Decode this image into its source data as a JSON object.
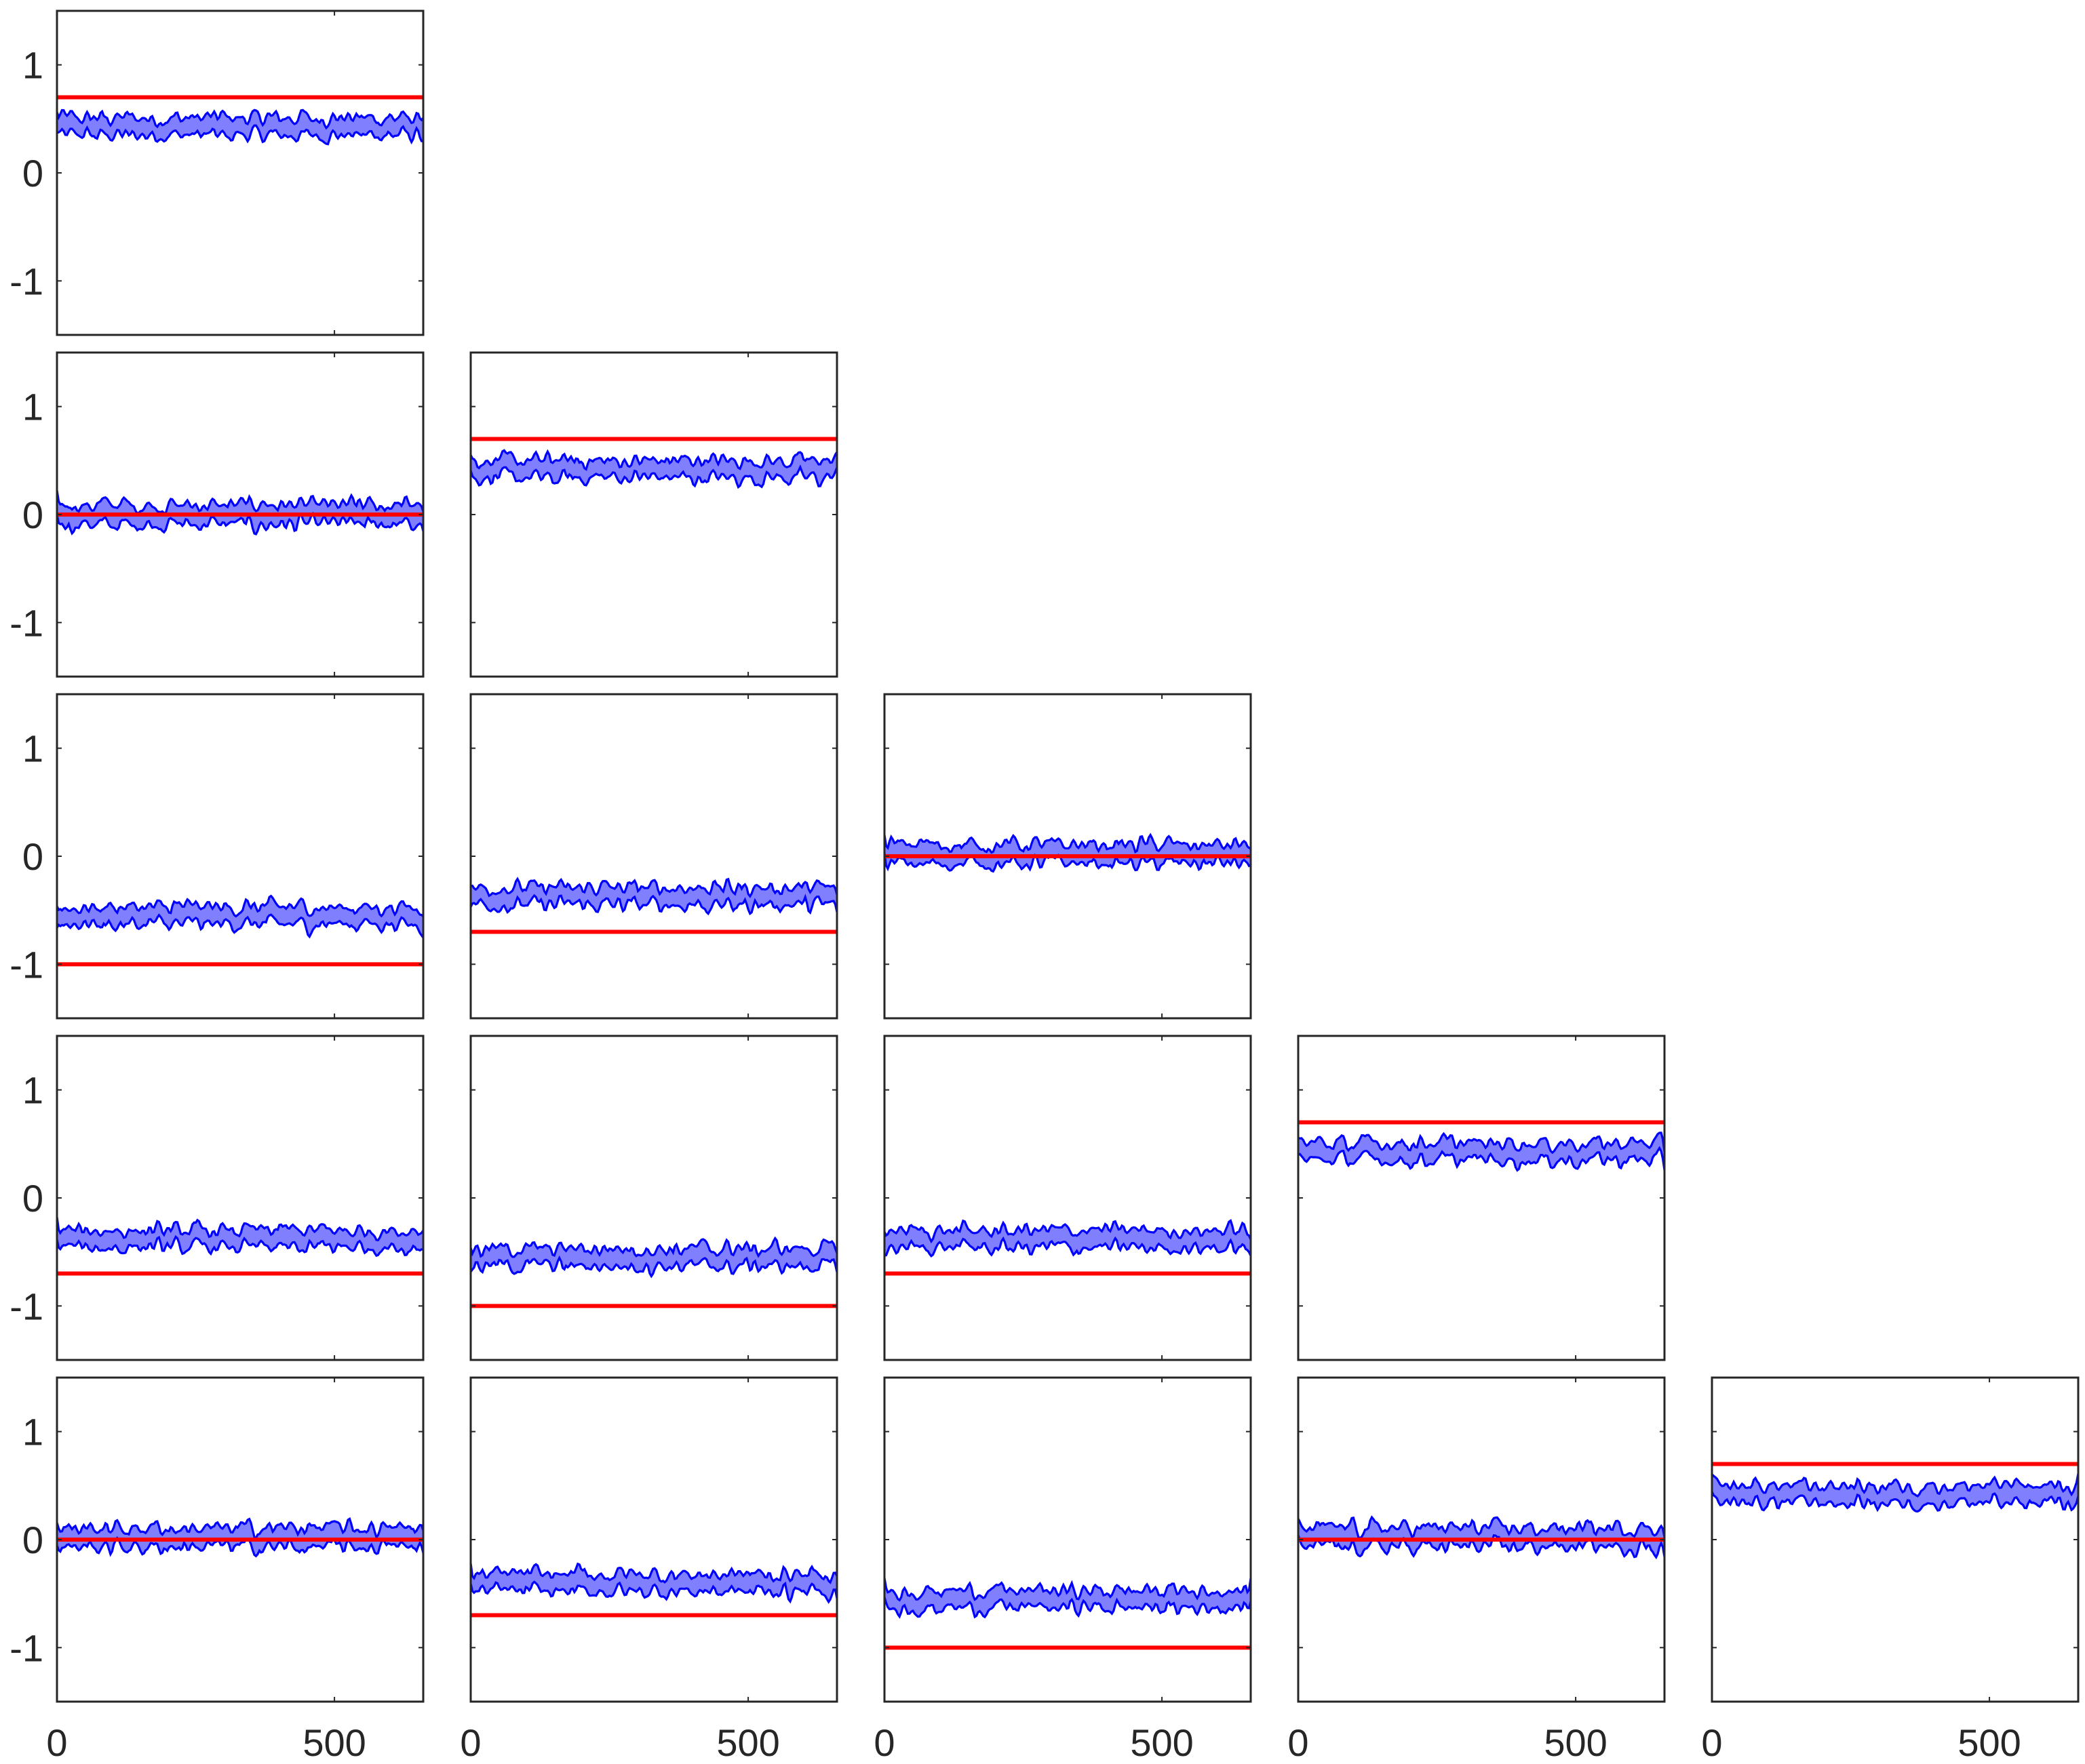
{
  "chart_data": {
    "type": "line",
    "layout": "lower-triangular grid of 15 panels (5 rows)",
    "xlim": [
      0,
      660
    ],
    "ylim": [
      -1.5,
      1.5
    ],
    "xticks": [
      0,
      500
    ],
    "xtick_labels": [
      "0",
      "500"
    ],
    "yticks": [
      -1,
      0,
      1
    ],
    "ytick_labels": [
      "-1",
      "0",
      "1"
    ],
    "grid": false,
    "legend": "none",
    "colors": {
      "reference_line": "#ff0000",
      "band_edge": "#0000ff",
      "band_fill": "#8080ff",
      "axes": "#262626"
    },
    "panels": [
      {
        "row": 1,
        "col": 1,
        "reference": 0.7,
        "band_center": 0.43,
        "band_halfwidth": 0.09
      },
      {
        "row": 2,
        "col": 1,
        "reference": 0.0,
        "band_center": 0.0,
        "band_halfwidth": 0.1
      },
      {
        "row": 2,
        "col": 2,
        "reference": 0.7,
        "band_center": 0.42,
        "band_halfwidth": 0.09
      },
      {
        "row": 3,
        "col": 1,
        "reference": -1.0,
        "band_center": -0.55,
        "band_halfwidth": 0.09
      },
      {
        "row": 3,
        "col": 2,
        "reference": -0.7,
        "band_center": -0.37,
        "band_halfwidth": 0.09
      },
      {
        "row": 3,
        "col": 3,
        "reference": 0.0,
        "band_center": 0.02,
        "band_halfwidth": 0.1
      },
      {
        "row": 4,
        "col": 1,
        "reference": -0.7,
        "band_center": -0.38,
        "band_halfwidth": 0.09
      },
      {
        "row": 4,
        "col": 2,
        "reference": -1.0,
        "band_center": -0.55,
        "band_halfwidth": 0.09
      },
      {
        "row": 4,
        "col": 3,
        "reference": -0.7,
        "band_center": -0.38,
        "band_halfwidth": 0.09
      },
      {
        "row": 4,
        "col": 4,
        "reference": 0.7,
        "band_center": 0.43,
        "band_halfwidth": 0.09
      },
      {
        "row": 5,
        "col": 1,
        "reference": 0.0,
        "band_center": 0.02,
        "band_halfwidth": 0.1
      },
      {
        "row": 5,
        "col": 2,
        "reference": -0.7,
        "band_center": -0.4,
        "band_halfwidth": 0.09
      },
      {
        "row": 5,
        "col": 3,
        "reference": -1.0,
        "band_center": -0.55,
        "band_halfwidth": 0.09
      },
      {
        "row": 5,
        "col": 4,
        "reference": 0.0,
        "band_center": 0.02,
        "band_halfwidth": 0.1
      },
      {
        "row": 5,
        "col": 5,
        "reference": 0.7,
        "band_center": 0.42,
        "band_halfwidth": 0.09
      }
    ]
  }
}
